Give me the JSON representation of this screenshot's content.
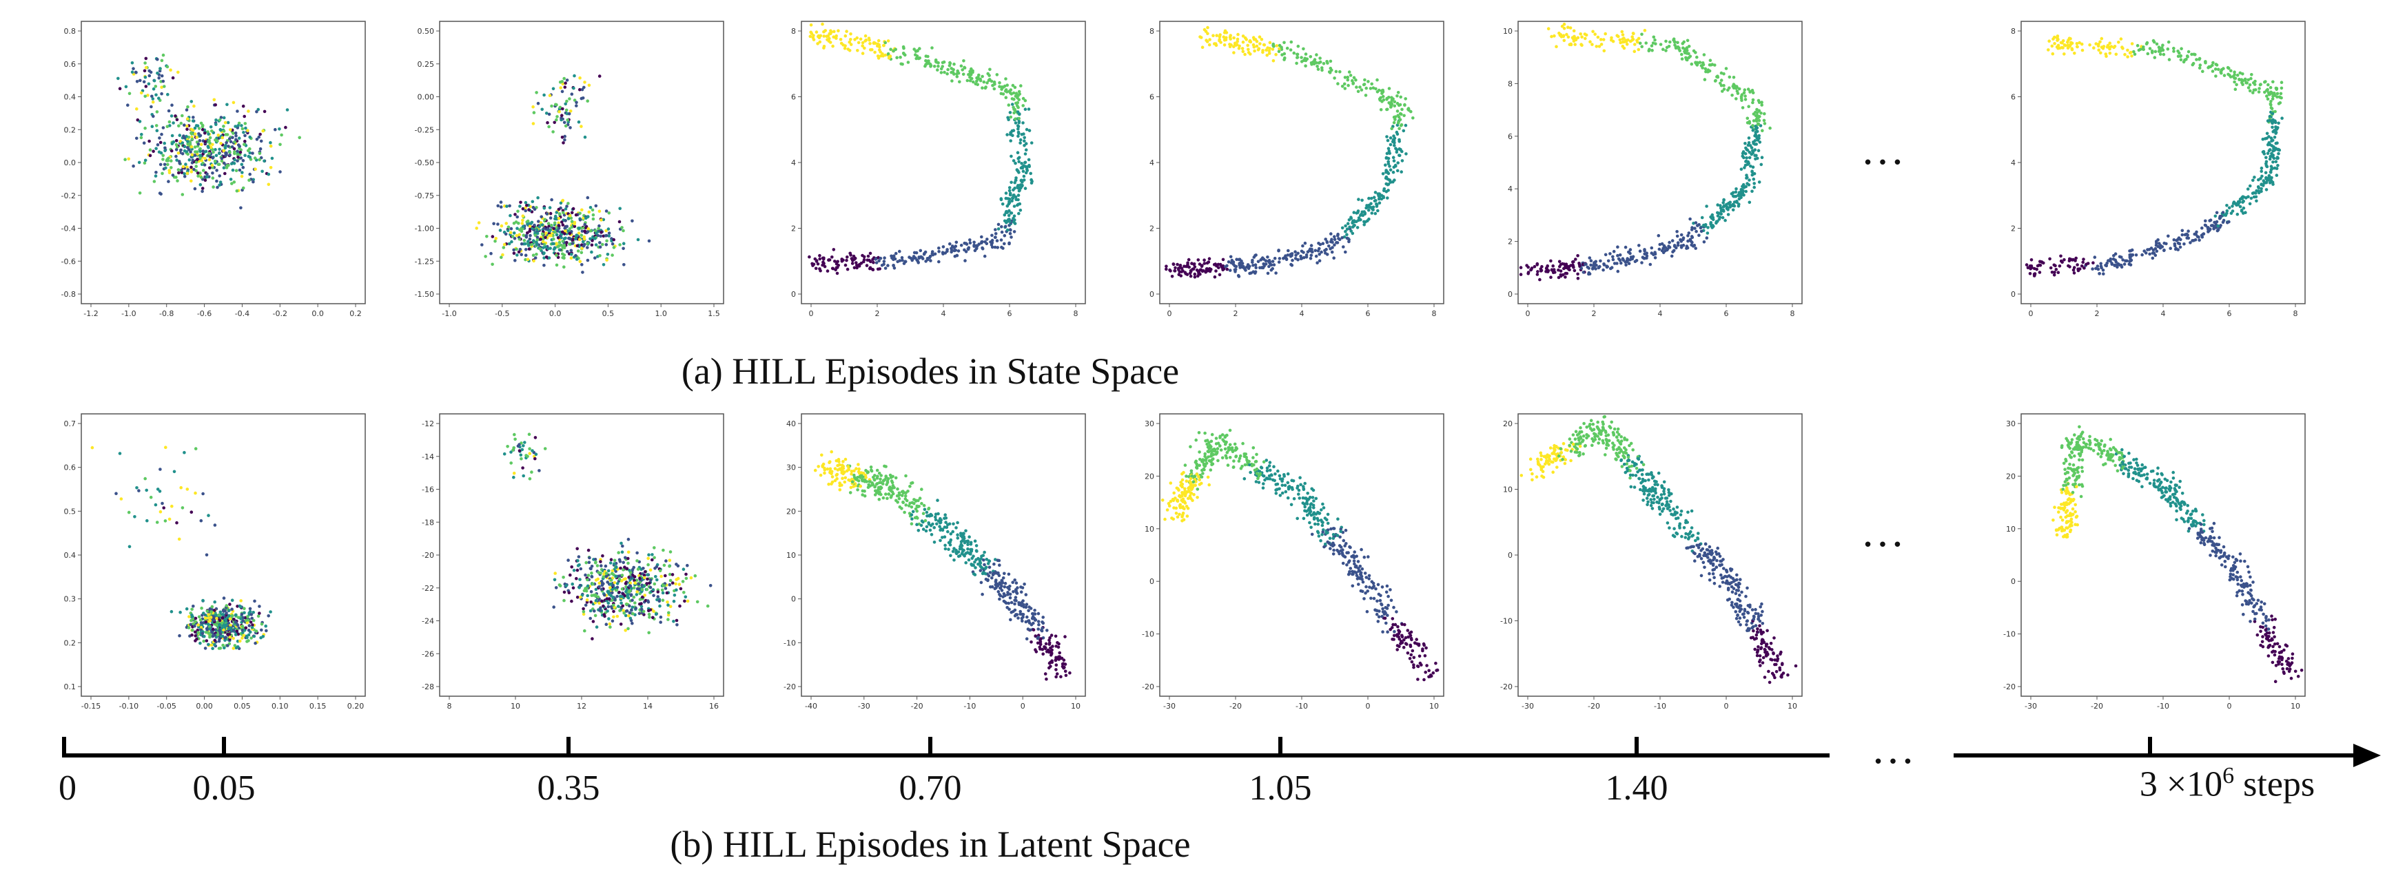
{
  "figure": {
    "caption_a": "(a) HILL Episodes in State Space",
    "caption_b": "(b) HILL Episodes in Latent Space",
    "ellipsis": "…",
    "colormap": [
      "#440154",
      "#3b528b",
      "#21918c",
      "#5ec962",
      "#fde725"
    ]
  },
  "timeline": {
    "labels": [
      "0",
      "0.05",
      "0.35",
      "0.70",
      "1.05",
      "1.40"
    ],
    "final_label_prefix": "3 ×10",
    "final_label_exp": "6",
    "final_label_suffix": " steps"
  },
  "chart_data": [
    {
      "type": "scatter",
      "row": "state",
      "stage": "0.05",
      "xlim": [
        -1.2,
        0.2
      ],
      "ylim": [
        -0.8,
        0.8
      ],
      "xticks": [
        "-1.2",
        "-1.0",
        "-0.8",
        "-0.6",
        "-0.4",
        "-0.2",
        "0.0",
        "0.2"
      ],
      "yticks": [
        "0.8",
        "0.6",
        "0.4",
        "0.2",
        "0.0",
        "-0.2",
        "-0.4",
        "-0.6",
        "-0.8"
      ]
    },
    {
      "type": "scatter",
      "row": "state",
      "stage": "0.35",
      "xlim": [
        -1.0,
        1.5
      ],
      "ylim": [
        -1.5,
        0.5
      ],
      "xticks": [
        "-1.0",
        "-0.5",
        "0.0",
        "0.5",
        "1.0",
        "1.5"
      ],
      "yticks": [
        "0.50",
        "0.25",
        "0.00",
        "-0.25",
        "-0.50",
        "-0.75",
        "-1.00",
        "-1.25",
        "-1.50"
      ]
    },
    {
      "type": "scatter",
      "row": "state",
      "stage": "0.70",
      "xlim": [
        0,
        8
      ],
      "ylim": [
        0,
        8
      ],
      "xticks": [
        "0",
        "2",
        "4",
        "6",
        "8"
      ],
      "yticks": [
        "8",
        "6",
        "4",
        "2",
        "0"
      ]
    },
    {
      "type": "scatter",
      "row": "state",
      "stage": "1.05",
      "xlim": [
        0,
        8
      ],
      "ylim": [
        0,
        8
      ],
      "xticks": [
        "0",
        "2",
        "4",
        "6",
        "8"
      ],
      "yticks": [
        "8",
        "6",
        "4",
        "2",
        "0"
      ]
    },
    {
      "type": "scatter",
      "row": "state",
      "stage": "1.40",
      "xlim": [
        0,
        8
      ],
      "ylim": [
        0,
        10
      ],
      "xticks": [
        "0",
        "2",
        "4",
        "6",
        "8"
      ],
      "yticks": [
        "10",
        "8",
        "6",
        "4",
        "2",
        "0"
      ]
    },
    {
      "type": "scatter",
      "row": "state",
      "stage": "3e6",
      "xlim": [
        0,
        8
      ],
      "ylim": [
        0,
        8
      ],
      "xticks": [
        "0",
        "2",
        "4",
        "6",
        "8"
      ],
      "yticks": [
        "8",
        "6",
        "4",
        "2",
        "0"
      ]
    },
    {
      "type": "scatter",
      "row": "latent",
      "stage": "0.05",
      "xlim": [
        -0.15,
        0.2
      ],
      "ylim": [
        0.1,
        0.7
      ],
      "xticks": [
        "-0.15",
        "-0.10",
        "-0.05",
        "0.00",
        "0.05",
        "0.10",
        "0.15",
        "0.20"
      ],
      "yticks": [
        "0.7",
        "0.6",
        "0.5",
        "0.4",
        "0.3",
        "0.2",
        "0.1"
      ]
    },
    {
      "type": "scatter",
      "row": "latent",
      "stage": "0.35",
      "xlim": [
        8,
        16
      ],
      "ylim": [
        -28,
        -12
      ],
      "xticks": [
        "8",
        "10",
        "12",
        "14",
        "16"
      ],
      "yticks": [
        "-12",
        "-14",
        "-16",
        "-18",
        "-20",
        "-22",
        "-24",
        "-26",
        "-28"
      ]
    },
    {
      "type": "scatter",
      "row": "latent",
      "stage": "0.70",
      "xlim": [
        -40,
        10
      ],
      "ylim": [
        -20,
        40
      ],
      "xticks": [
        "-40",
        "-30",
        "-20",
        "-10",
        "0",
        "10"
      ],
      "yticks": [
        "40",
        "30",
        "20",
        "10",
        "0",
        "-10",
        "-20"
      ]
    },
    {
      "type": "scatter",
      "row": "latent",
      "stage": "1.05",
      "xlim": [
        -30,
        10
      ],
      "ylim": [
        -20,
        30
      ],
      "xticks": [
        "-30",
        "-20",
        "-10",
        "0",
        "10"
      ],
      "yticks": [
        "30",
        "20",
        "10",
        "0",
        "-10",
        "-20"
      ]
    },
    {
      "type": "scatter",
      "row": "latent",
      "stage": "1.40",
      "xlim": [
        -30,
        10
      ],
      "ylim": [
        -20,
        20
      ],
      "xticks": [
        "-30",
        "-20",
        "-10",
        "0",
        "10"
      ],
      "yticks": [
        "20",
        "10",
        "0",
        "-10",
        "-20"
      ]
    },
    {
      "type": "scatter",
      "row": "latent",
      "stage": "3e6",
      "xlim": [
        -30,
        10
      ],
      "ylim": [
        -20,
        30
      ],
      "xticks": [
        "-30",
        "-20",
        "-10",
        "0",
        "10"
      ],
      "yticks": [
        "30",
        "20",
        "10",
        "0",
        "-10",
        "-20"
      ]
    }
  ]
}
